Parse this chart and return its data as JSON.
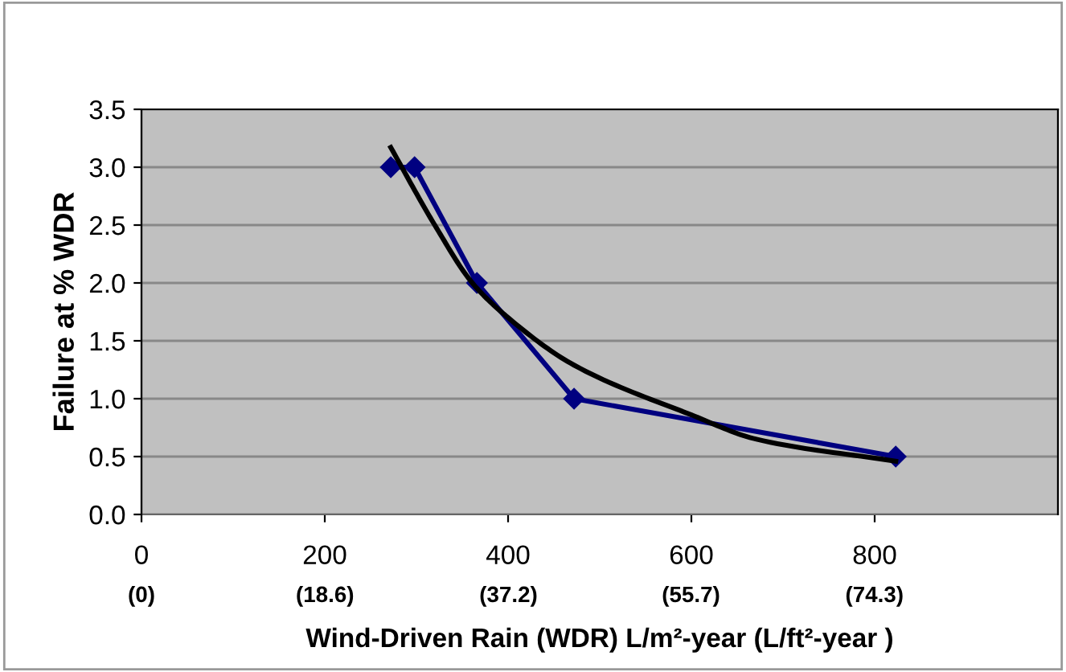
{
  "chart_data": {
    "type": "line",
    "xlabel": "Wind-Driven Rain (WDR) L/m²-year (L/ft²-year )",
    "ylabel": "Failure at % WDR",
    "xlim": [
      0,
      1000
    ],
    "xticks": [
      0,
      200,
      400,
      600,
      800
    ],
    "x2lim": [
      0,
      92.9
    ],
    "x2ticks": [
      {
        "value": 0,
        "label": "(0)"
      },
      {
        "value": 18.6,
        "label": "(18.6)"
      },
      {
        "value": 37.2,
        "label": "(37.2)"
      },
      {
        "value": 55.7,
        "label": "(55.7)"
      },
      {
        "value": 74.3,
        "label": "(74.3)"
      }
    ],
    "ylim": [
      0,
      3.5
    ],
    "yticks": [
      {
        "value": 0,
        "label": "0.0"
      },
      {
        "value": 0.5,
        "label": "0.5"
      },
      {
        "value": 1,
        "label": "1.0"
      },
      {
        "value": 1.5,
        "label": "1.5"
      },
      {
        "value": 2,
        "label": "2.0"
      },
      {
        "value": 2.5,
        "label": "2.5"
      },
      {
        "value": 3,
        "label": "3.0"
      },
      {
        "value": 3.5,
        "label": "3.5"
      }
    ],
    "grid": "y",
    "series": [
      {
        "color": "#000080",
        "marker": "diamond",
        "x": [
          272,
          298,
          366,
          472,
          823
        ],
        "values": [
          3.0,
          3.0,
          2.0,
          1.0,
          0.5
        ]
      },
      {
        "color": "#000000",
        "marker": "none",
        "x": [
          272,
          320,
          361,
          400,
          472,
          600,
          671,
          823
        ],
        "values": [
          3.17,
          2.5,
          2.0,
          1.7,
          1.29,
          0.86,
          0.65,
          0.46
        ]
      }
    ]
  }
}
